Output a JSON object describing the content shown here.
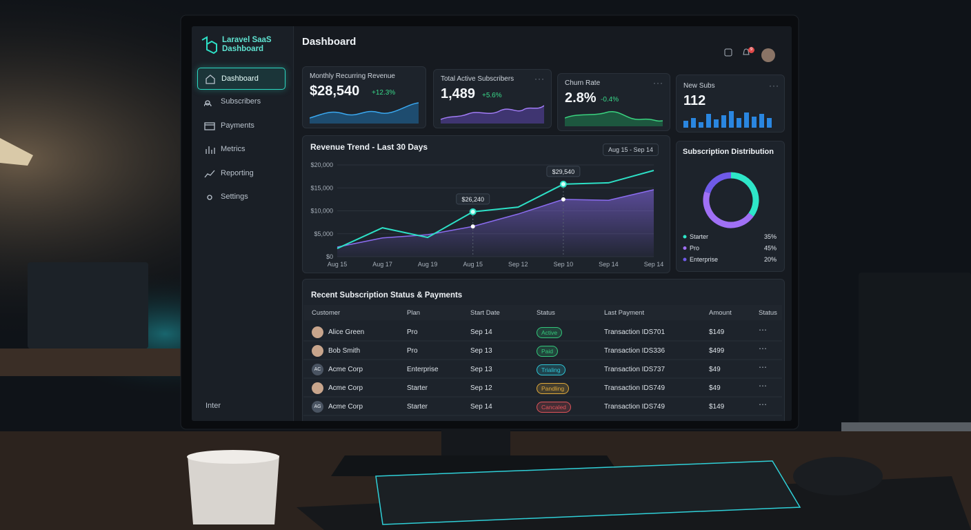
{
  "sidebar": {
    "brand": "Laravel SaaS Dashboard",
    "nav": [
      "Dashboard",
      "Subscribers",
      "Payments",
      "Metrics",
      "Reporting",
      "Settings"
    ],
    "footer": "Inter"
  },
  "header": {
    "title": "Dashboard",
    "notifications": "9"
  },
  "kpis": [
    {
      "label": "Monthly Recurring Revenue",
      "value": "$28,540",
      "change": "+12.3%"
    },
    {
      "label": "Total Active Subscribers",
      "value": "1,489",
      "change": "+5.6%"
    },
    {
      "label": "Churn Rate",
      "value": "2.8%",
      "change": "-0.4%"
    },
    {
      "label": "New Subs",
      "value": "112"
    }
  ],
  "chart_data": [
    {
      "type": "line",
      "title": "Revenue Trend - Last 30 Days",
      "range": "Aug 15 - Sep 14",
      "categories": [
        "Aug 15",
        "Aug 17",
        "Aug 19",
        "Aug 15",
        "Sep 12",
        "Sep 10",
        "Sep 14",
        "Sep 14"
      ],
      "series": [
        {
          "color": "#2de0c6",
          "values": [
            1800,
            6300,
            4200,
            9800,
            10800,
            15800,
            16100,
            18800
          ]
        },
        {
          "color": "#8b6cf0",
          "values": [
            2100,
            4100,
            4800,
            6600,
            9300,
            12500,
            12300,
            14600
          ]
        }
      ],
      "ylim": [
        0,
        20000
      ],
      "yticks": [
        {
          "value": 0,
          "label": "$0"
        },
        {
          "value": 5000,
          "label": "$5,000"
        },
        {
          "value": 10000,
          "label": "$10,000"
        },
        {
          "value": 15000,
          "label": "$15,000"
        },
        {
          "value": 20000,
          "label": "$20,000"
        }
      ],
      "grid": true,
      "annotations": [
        {
          "text": "$26,240",
          "at": 3
        },
        {
          "text": "$29,540",
          "at": 5
        }
      ]
    },
    {
      "type": "pie",
      "title": "Subscription Distribution",
      "categories": [
        "Starter",
        "Pro",
        "Enterprise"
      ],
      "values": [
        35,
        45,
        20
      ],
      "value_labels": [
        "35%",
        "45%",
        "20%"
      ],
      "colors": [
        "#2ee6c8",
        "#a070f5",
        "#6f5ae8"
      ]
    }
  ],
  "table": {
    "title": "Recent Subscription Status & Payments",
    "columns": [
      "Customer",
      "Plan",
      "Start Date",
      "Status",
      "Last Payment",
      "Amount",
      "Status"
    ],
    "rows": [
      {
        "customer": "Alice Green",
        "plan": "Pro",
        "start": "Sep 14",
        "status": "Active",
        "status_color": "#34c77b",
        "payment": "Transaction IDS701",
        "amount": "$149"
      },
      {
        "customer": "Bob Smith",
        "plan": "Pro",
        "start": "Sep 13",
        "status": "Paid",
        "status_color": "#34c77b",
        "payment": "Transaction IDS336",
        "amount": "$499"
      },
      {
        "customer": "Acme Corp",
        "avatar": "AC",
        "plan": "Enterprise",
        "start": "Sep 13",
        "status": "Trialing",
        "status_color": "#2ec5d6",
        "payment": "Transaction IDS737",
        "amount": "$49"
      },
      {
        "customer": "Acme Corp",
        "plan": "Starter",
        "start": "Sep 12",
        "status": "Pandling",
        "status_color": "#e0a93a",
        "payment": "Transaction IDS749",
        "amount": "$49"
      },
      {
        "customer": "Acme Corp",
        "avatar": "AG",
        "plan": "Starter",
        "start": "Sep 14",
        "status": "Cancaled",
        "status_color": "#e0535a",
        "payment": "Transaction IDS749",
        "amount": "$149"
      }
    ]
  }
}
